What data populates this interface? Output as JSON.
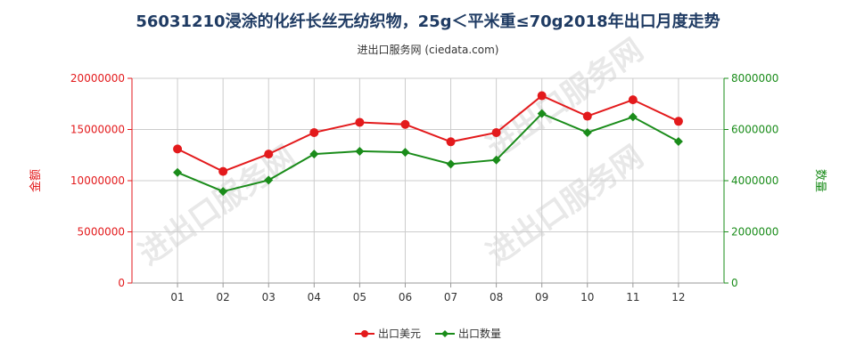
{
  "title": "56031210浸涂的化纤长丝无纺织物，25g＜平米重≤70g2018年出口月度走势",
  "subtitle": "进出口服务网 (ciedata.com)",
  "watermark": "进出口服务网",
  "colors": {
    "usd": "#e31a1c",
    "qty": "#1a8c1a",
    "grid": "#cccccc",
    "axis": "#666666"
  },
  "chart_data": {
    "type": "line",
    "categories": [
      "01",
      "02",
      "03",
      "04",
      "05",
      "06",
      "07",
      "08",
      "09",
      "10",
      "11",
      "12"
    ],
    "y_left": {
      "label": "金额",
      "ylim": [
        0,
        20000000
      ],
      "ticks": [
        "0",
        "5000000",
        "10000000",
        "15000000",
        "20000000"
      ]
    },
    "y_right": {
      "label": "数量",
      "ylim": [
        0,
        8000000
      ],
      "ticks": [
        "0",
        "2000000",
        "4000000",
        "6000000",
        "8000000"
      ]
    },
    "series": [
      {
        "name": "出口美元",
        "axis": "left",
        "color": "#e31a1c",
        "values": [
          13100000,
          10900000,
          12600000,
          14700000,
          15700000,
          15500000,
          13800000,
          14700000,
          18300000,
          16300000,
          17900000,
          15800000
        ]
      },
      {
        "name": "出口数量",
        "axis": "right",
        "color": "#1a8c1a",
        "values": [
          4320000,
          3580000,
          4020000,
          5040000,
          5150000,
          5110000,
          4650000,
          4810000,
          6620000,
          5880000,
          6490000,
          5530000
        ]
      }
    ],
    "grid": true,
    "legend_position": "bottom-center"
  }
}
